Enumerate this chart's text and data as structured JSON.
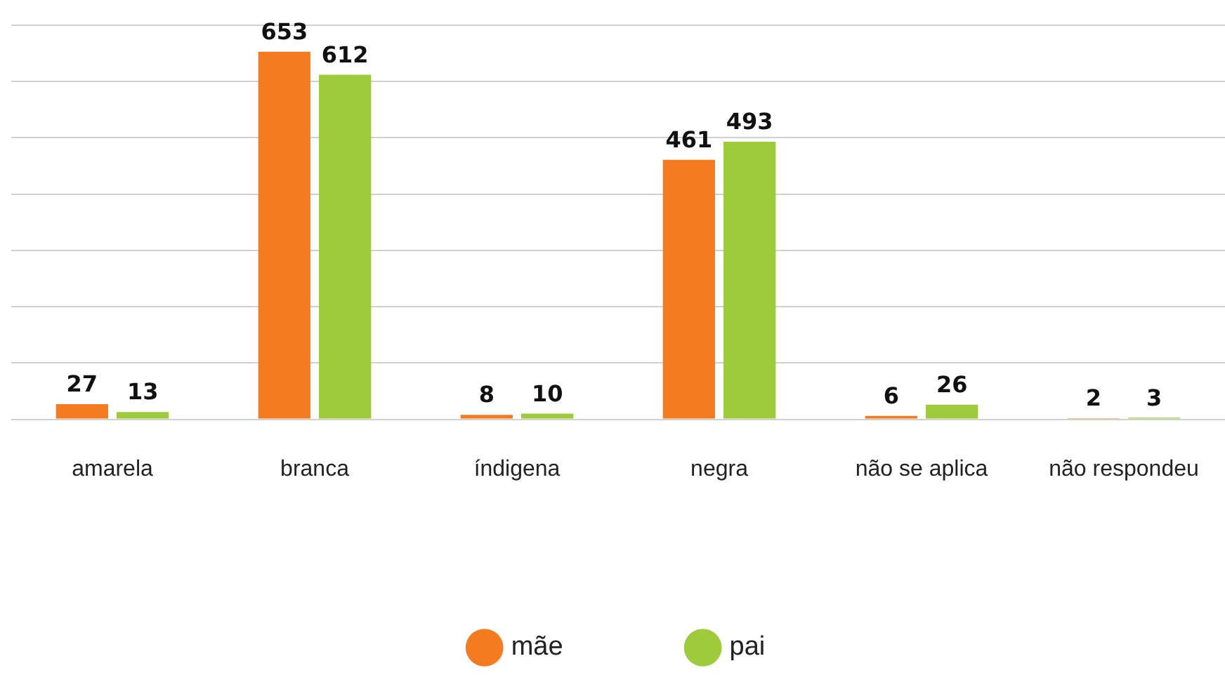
{
  "chart_data": {
    "type": "bar",
    "categories": [
      "amarela",
      "branca",
      "índigena",
      "negra",
      "não se aplica",
      "não respondeu"
    ],
    "series": [
      {
        "name": "mãe",
        "color": "#f47b20",
        "values": [
          27,
          653,
          8,
          461,
          6,
          2
        ]
      },
      {
        "name": "pai",
        "color": "#9dcb3c",
        "values": [
          13,
          612,
          10,
          493,
          26,
          3
        ]
      }
    ],
    "tick_labels": "x",
    "grid": "y",
    "data_labels": true,
    "legend": "bottom"
  }
}
